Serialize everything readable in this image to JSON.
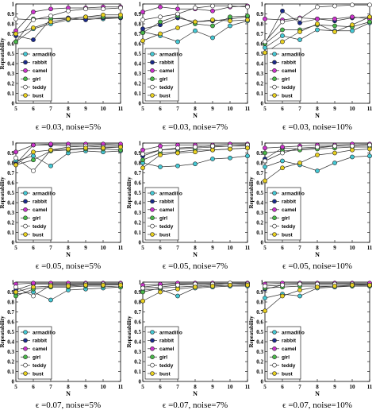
{
  "legend_labels": [
    "armadillo",
    "rabbit",
    "camel",
    "girl",
    "teddy",
    "bust"
  ],
  "series_colors": [
    "#44c8d4",
    "#1a2a8c",
    "#cc33cc",
    "#4ab84a",
    "#ffffff",
    "#e8d020"
  ],
  "chart_data": [
    {
      "type": "line",
      "caption": "ϵ =0.03, noise=5%",
      "xlabel": "N",
      "ylabel": "Repeatability",
      "x": [
        5,
        6,
        7,
        8,
        9,
        10,
        11
      ],
      "xlim": [
        5,
        11
      ],
      "ylim": [
        0,
        1
      ],
      "yticks": [
        0,
        0.1,
        0.2,
        0.3,
        0.4,
        0.5,
        0.6,
        0.7,
        0.8,
        0.9,
        1
      ],
      "xticks": [
        5,
        6,
        7,
        8,
        9,
        10,
        11
      ],
      "legend": "bottom-left",
      "grid": false,
      "series": [
        {
          "name": "armadillo",
          "values": [
            0.62,
            0.75,
            0.8,
            0.84,
            0.85,
            0.85,
            0.86
          ]
        },
        {
          "name": "rabbit",
          "values": [
            0.68,
            0.64,
            0.85,
            0.86,
            0.84,
            0.86,
            0.86
          ]
        },
        {
          "name": "camel",
          "values": [
            0.73,
            0.92,
            0.95,
            0.96,
            0.96,
            0.97,
            0.97
          ]
        },
        {
          "name": "girl",
          "values": [
            0.62,
            0.85,
            0.85,
            0.85,
            0.87,
            0.87,
            0.87
          ]
        },
        {
          "name": "teddy",
          "values": [
            0.85,
            0.84,
            0.88,
            0.93,
            0.95,
            0.95,
            0.96
          ]
        },
        {
          "name": "bust",
          "values": [
            0.7,
            0.76,
            0.82,
            0.85,
            0.87,
            0.89,
            0.89
          ]
        }
      ]
    },
    {
      "type": "line",
      "caption": "ϵ =0.03, noise=7%",
      "xlabel": "N",
      "ylabel": "",
      "x": [
        5,
        6,
        7,
        8,
        9,
        10,
        11
      ],
      "xlim": [
        5,
        11
      ],
      "ylim": [
        0,
        1
      ],
      "yticks": [
        0,
        0.1,
        0.2,
        0.3,
        0.4,
        0.5,
        0.6,
        0.7,
        0.8,
        0.9,
        1
      ],
      "xticks": [
        5,
        6,
        7,
        8,
        9,
        10,
        11
      ],
      "legend": "bottom-left",
      "grid": false,
      "series": [
        {
          "name": "armadillo",
          "values": [
            0.72,
            0.68,
            0.62,
            0.73,
            0.66,
            0.78,
            0.83
          ]
        },
        {
          "name": "rabbit",
          "values": [
            0.75,
            0.79,
            0.86,
            0.82,
            0.83,
            0.85,
            0.87
          ]
        },
        {
          "name": "camel",
          "values": [
            0.92,
            0.97,
            0.95,
            0.95,
            0.93,
            0.97,
            0.98
          ]
        },
        {
          "name": "girl",
          "values": [
            0.71,
            0.82,
            0.88,
            0.8,
            0.78,
            0.87,
            0.88
          ]
        },
        {
          "name": "teddy",
          "values": [
            0.84,
            0.87,
            0.9,
            0.96,
            0.98,
            0.98,
            0.97
          ]
        },
        {
          "name": "bust",
          "values": [
            0.63,
            0.7,
            0.76,
            0.82,
            0.84,
            0.83,
            0.84
          ]
        }
      ]
    },
    {
      "type": "line",
      "caption": "ϵ =0.03, noise=10%",
      "xlabel": "N",
      "ylabel": "",
      "x": [
        5,
        6,
        7,
        8,
        9,
        10,
        11
      ],
      "xlim": [
        5,
        11
      ],
      "ylim": [
        0,
        1
      ],
      "yticks": [
        0,
        0.1,
        0.2,
        0.3,
        0.4,
        0.5,
        0.6,
        0.7,
        0.8,
        0.9,
        1
      ],
      "xticks": [
        5,
        6,
        7,
        8,
        9,
        10,
        11
      ],
      "legend": "bottom-left",
      "grid": false,
      "series": [
        {
          "name": "armadillo",
          "values": [
            0.56,
            0.68,
            0.64,
            0.74,
            0.73,
            0.73,
            0.81
          ]
        },
        {
          "name": "rabbit",
          "values": [
            0.6,
            0.93,
            0.81,
            0.85,
            0.83,
            0.86,
            0.87
          ]
        },
        {
          "name": "camel",
          "values": [
            0.85,
            0.84,
            0.86,
            0.85,
            0.85,
            0.87,
            0.85
          ]
        },
        {
          "name": "girl",
          "values": [
            0.6,
            0.74,
            0.74,
            0.79,
            0.78,
            0.77,
            0.82
          ]
        },
        {
          "name": "teddy",
          "values": [
            0.62,
            0.82,
            0.85,
            0.97,
            0.98,
            0.99,
            0.99
          ]
        },
        {
          "name": "bust",
          "values": [
            0.51,
            0.62,
            0.72,
            0.8,
            0.72,
            0.79,
            0.87
          ]
        }
      ]
    },
    {
      "type": "line",
      "caption": "ϵ =0.05, noise=5%",
      "xlabel": "N",
      "ylabel": "Repeatability",
      "x": [
        5,
        6,
        7,
        8,
        9,
        10,
        11
      ],
      "xlim": [
        5,
        11
      ],
      "ylim": [
        0,
        1
      ],
      "yticks": [
        0,
        0.1,
        0.2,
        0.3,
        0.4,
        0.5,
        0.6,
        0.7,
        0.8,
        0.9,
        1
      ],
      "xticks": [
        5,
        6,
        7,
        8,
        9,
        10,
        11
      ],
      "legend": "bottom-left",
      "grid": false,
      "series": [
        {
          "name": "armadillo",
          "values": [
            0.82,
            0.87,
            0.77,
            0.9,
            0.92,
            0.91,
            0.92
          ]
        },
        {
          "name": "rabbit",
          "values": [
            0.79,
            0.98,
            0.98,
            0.97,
            0.97,
            0.98,
            0.97
          ]
        },
        {
          "name": "camel",
          "values": [
            0.91,
            0.98,
            0.99,
            0.99,
            0.99,
            0.99,
            0.99
          ]
        },
        {
          "name": "girl",
          "values": [
            0.78,
            0.83,
            0.92,
            0.93,
            0.94,
            0.94,
            0.93
          ]
        },
        {
          "name": "teddy",
          "values": [
            0.85,
            0.72,
            0.93,
            0.96,
            0.97,
            0.96,
            0.96
          ]
        },
        {
          "name": "bust",
          "values": [
            0.78,
            0.91,
            0.93,
            0.94,
            0.95,
            0.95,
            0.96
          ]
        }
      ]
    },
    {
      "type": "line",
      "caption": "ϵ =0.05, noise=7%",
      "xlabel": "N",
      "ylabel": "Repeatability",
      "x": [
        5,
        6,
        7,
        8,
        9,
        10,
        11
      ],
      "xlim": [
        5,
        11
      ],
      "ylim": [
        0,
        1
      ],
      "yticks": [
        0,
        0.1,
        0.2,
        0.3,
        0.4,
        0.5,
        0.6,
        0.7,
        0.8,
        0.9,
        1
      ],
      "xticks": [
        5,
        6,
        7,
        8,
        9,
        10,
        11
      ],
      "legend": "bottom-left",
      "grid": false,
      "series": [
        {
          "name": "armadillo",
          "values": [
            0.8,
            0.76,
            0.77,
            0.79,
            0.84,
            0.85,
            0.87
          ]
        },
        {
          "name": "rabbit",
          "values": [
            0.87,
            0.93,
            0.94,
            0.95,
            0.96,
            0.97,
            0.97
          ]
        },
        {
          "name": "camel",
          "values": [
            0.93,
            0.97,
            0.98,
            0.98,
            0.98,
            0.99,
            0.99
          ]
        },
        {
          "name": "girl",
          "values": [
            0.83,
            0.9,
            0.91,
            0.93,
            0.93,
            0.94,
            0.95
          ]
        },
        {
          "name": "teddy",
          "values": [
            0.89,
            0.93,
            0.95,
            0.96,
            0.97,
            0.97,
            0.98
          ]
        },
        {
          "name": "bust",
          "values": [
            0.75,
            0.88,
            0.9,
            0.91,
            0.93,
            0.94,
            0.95
          ]
        }
      ]
    },
    {
      "type": "line",
      "caption": "ϵ =0.05, noise=10%",
      "xlabel": "N",
      "ylabel": "Repeatability",
      "x": [
        5,
        6,
        7,
        8,
        9,
        10,
        11
      ],
      "xlim": [
        5,
        11
      ],
      "ylim": [
        0,
        1
      ],
      "yticks": [
        0,
        0.1,
        0.2,
        0.3,
        0.4,
        0.5,
        0.6,
        0.7,
        0.8,
        0.9,
        1
      ],
      "xticks": [
        5,
        6,
        7,
        8,
        9,
        10,
        11
      ],
      "legend": "bottom-left",
      "grid": false,
      "series": [
        {
          "name": "armadillo",
          "values": [
            0.76,
            0.82,
            0.78,
            0.72,
            0.8,
            0.86,
            0.87
          ]
        },
        {
          "name": "rabbit",
          "values": [
            0.84,
            0.95,
            0.94,
            0.95,
            0.97,
            0.97,
            0.98
          ]
        },
        {
          "name": "camel",
          "values": [
            0.95,
            0.96,
            0.97,
            0.98,
            0.98,
            0.99,
            0.99
          ]
        },
        {
          "name": "girl",
          "values": [
            0.9,
            0.92,
            0.93,
            0.94,
            0.95,
            0.96,
            0.96
          ]
        },
        {
          "name": "teddy",
          "values": [
            0.82,
            0.9,
            0.95,
            0.96,
            0.97,
            0.97,
            0.98
          ]
        },
        {
          "name": "bust",
          "values": [
            0.62,
            0.75,
            0.8,
            0.88,
            0.9,
            0.93,
            0.94
          ]
        }
      ]
    },
    {
      "type": "line",
      "caption": "ϵ =0.07, noise=5%",
      "xlabel": "N",
      "ylabel": "Repeatability",
      "x": [
        5,
        6,
        7,
        8,
        9,
        10,
        11
      ],
      "xlim": [
        5,
        11
      ],
      "ylim": [
        0,
        1
      ],
      "yticks": [
        0,
        0.1,
        0.2,
        0.3,
        0.4,
        0.5,
        0.6,
        0.7,
        0.8,
        0.9,
        1
      ],
      "xticks": [
        5,
        6,
        7,
        8,
        9,
        10,
        11
      ],
      "legend": "bottom-left",
      "grid": false,
      "series": [
        {
          "name": "armadillo",
          "values": [
            0.88,
            0.9,
            0.82,
            0.92,
            0.93,
            0.94,
            0.95
          ]
        },
        {
          "name": "rabbit",
          "values": [
            0.92,
            0.98,
            0.98,
            0.98,
            0.98,
            0.98,
            0.98
          ]
        },
        {
          "name": "camel",
          "values": [
            0.98,
            0.99,
            0.99,
            0.99,
            0.99,
            0.99,
            0.99
          ]
        },
        {
          "name": "girl",
          "values": [
            0.86,
            0.93,
            0.95,
            0.95,
            0.96,
            0.96,
            0.95
          ]
        },
        {
          "name": "teddy",
          "values": [
            0.95,
            0.86,
            0.97,
            0.97,
            0.98,
            0.98,
            0.98
          ]
        },
        {
          "name": "bust",
          "values": [
            0.9,
            0.95,
            0.96,
            0.96,
            0.97,
            0.97,
            0.97
          ]
        }
      ]
    },
    {
      "type": "line",
      "caption": "ϵ =0.07, noise=7%",
      "xlabel": "N",
      "ylabel": "Repeatability",
      "x": [
        5,
        6,
        7,
        8,
        9,
        10,
        11
      ],
      "xlim": [
        5,
        11
      ],
      "ylim": [
        0,
        1
      ],
      "yticks": [
        0,
        0.1,
        0.2,
        0.3,
        0.4,
        0.5,
        0.6,
        0.7,
        0.8,
        0.9,
        1
      ],
      "xticks": [
        5,
        6,
        7,
        8,
        9,
        10,
        11
      ],
      "legend": "bottom-left",
      "grid": false,
      "series": [
        {
          "name": "armadillo",
          "values": [
            0.92,
            0.93,
            0.86,
            0.94,
            0.95,
            0.96,
            0.96
          ]
        },
        {
          "name": "rabbit",
          "values": [
            0.95,
            0.97,
            0.98,
            0.98,
            0.98,
            0.99,
            0.99
          ]
        },
        {
          "name": "camel",
          "values": [
            0.97,
            0.98,
            0.99,
            0.99,
            0.99,
            0.99,
            0.99
          ]
        },
        {
          "name": "girl",
          "values": [
            0.9,
            0.94,
            0.95,
            0.96,
            0.97,
            0.97,
            0.97
          ]
        },
        {
          "name": "teddy",
          "values": [
            0.94,
            0.95,
            0.97,
            0.98,
            0.98,
            0.99,
            0.98
          ]
        },
        {
          "name": "bust",
          "values": [
            0.81,
            0.9,
            0.93,
            0.95,
            0.96,
            0.97,
            0.97
          ]
        }
      ]
    },
    {
      "type": "line",
      "caption": "ϵ =0.07, noise=10%",
      "xlabel": "N",
      "ylabel": "Repeatability",
      "x": [
        5,
        6,
        7,
        8,
        9,
        10,
        11
      ],
      "xlim": [
        5,
        11
      ],
      "ylim": [
        0,
        1
      ],
      "yticks": [
        0,
        0.1,
        0.2,
        0.3,
        0.4,
        0.5,
        0.6,
        0.7,
        0.8,
        0.9,
        1
      ],
      "xticks": [
        5,
        6,
        7,
        8,
        9,
        10,
        11
      ],
      "legend": "bottom-left",
      "grid": false,
      "series": [
        {
          "name": "armadillo",
          "values": [
            0.84,
            0.88,
            0.86,
            0.94,
            0.95,
            0.96,
            0.96
          ]
        },
        {
          "name": "rabbit",
          "values": [
            0.93,
            0.97,
            0.98,
            0.98,
            0.98,
            0.98,
            0.98
          ]
        },
        {
          "name": "camel",
          "values": [
            0.98,
            0.99,
            0.99,
            0.99,
            0.99,
            0.99,
            0.99
          ]
        },
        {
          "name": "girl",
          "values": [
            0.94,
            0.95,
            0.96,
            0.96,
            0.96,
            0.96,
            0.96
          ]
        },
        {
          "name": "teddy",
          "values": [
            0.96,
            0.97,
            0.98,
            0.98,
            0.98,
            0.98,
            0.97
          ]
        },
        {
          "name": "bust",
          "values": [
            0.71,
            0.86,
            0.92,
            0.95,
            0.96,
            0.97,
            0.97
          ]
        }
      ]
    }
  ]
}
